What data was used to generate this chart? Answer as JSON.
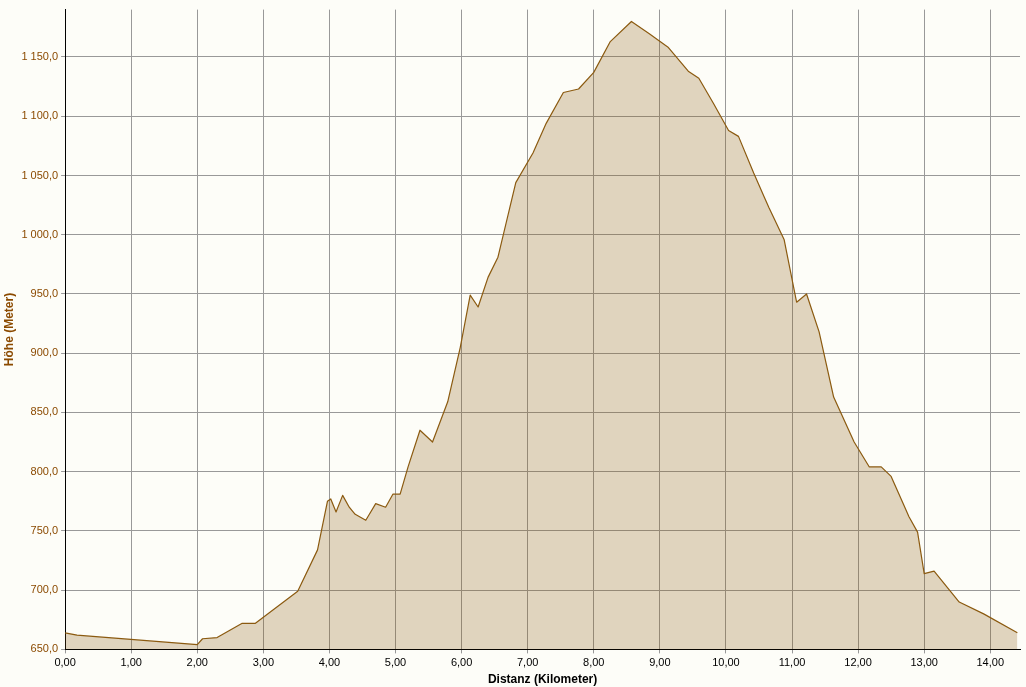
{
  "chart_data": {
    "type": "area",
    "xlabel": "Distanz (Kilometer)",
    "ylabel": "Höhe (Meter)",
    "grid": true,
    "legend": false,
    "marker": "none",
    "line_style": "solid",
    "xlim": [
      0,
      14.45
    ],
    "ylim": [
      650,
      1190
    ],
    "xticks": [
      {
        "value": 0,
        "label": "0,00"
      },
      {
        "value": 1,
        "label": "1,00"
      },
      {
        "value": 2,
        "label": "2,00"
      },
      {
        "value": 3,
        "label": "3,00"
      },
      {
        "value": 4,
        "label": "4,00"
      },
      {
        "value": 5,
        "label": "5,00"
      },
      {
        "value": 6,
        "label": "6,00"
      },
      {
        "value": 7,
        "label": "7,00"
      },
      {
        "value": 8,
        "label": "8,00"
      },
      {
        "value": 9,
        "label": "9,00"
      },
      {
        "value": 10,
        "label": "10,00"
      },
      {
        "value": 11,
        "label": "11,00"
      },
      {
        "value": 12,
        "label": "12,00"
      },
      {
        "value": 13,
        "label": "13,00"
      },
      {
        "value": 14,
        "label": "14,00"
      }
    ],
    "yticks": [
      {
        "value": 650,
        "label": "650,0"
      },
      {
        "value": 700,
        "label": "700,0"
      },
      {
        "value": 750,
        "label": "750,0"
      },
      {
        "value": 800,
        "label": "800,0"
      },
      {
        "value": 850,
        "label": "850,0"
      },
      {
        "value": 900,
        "label": "900,0"
      },
      {
        "value": 950,
        "label": "950,0"
      },
      {
        "value": 1000,
        "label": "1 000,0"
      },
      {
        "value": 1050,
        "label": "1 050,0"
      },
      {
        "value": 1100,
        "label": "1 100,0"
      },
      {
        "value": 1150,
        "label": "1 150,0"
      }
    ],
    "series": [
      {
        "color": "#8b5a10",
        "x": [
          0,
          0.18,
          2.0,
          2.08,
          2.3,
          2.68,
          2.88,
          3.52,
          3.82,
          3.97,
          4.02,
          4.1,
          4.2,
          4.3,
          4.39,
          4.55,
          4.7,
          4.85,
          4.96,
          5.07,
          5.19,
          5.37,
          5.56,
          5.79,
          5.98,
          6.13,
          6.25,
          6.4,
          6.55,
          6.82,
          7.08,
          7.28,
          7.54,
          7.77,
          8.0,
          8.25,
          8.57,
          8.83,
          9.13,
          9.43,
          9.59,
          9.81,
          10.04,
          10.19,
          10.42,
          10.65,
          10.88,
          11.07,
          11.22,
          11.41,
          11.63,
          11.94,
          12.17,
          12.35,
          12.5,
          12.77,
          12.9,
          13.0,
          13.15,
          13.53,
          13.9,
          14.41
        ],
        "values": [
          664,
          662,
          654,
          659,
          660,
          672,
          672,
          699,
          734,
          775,
          777,
          766,
          780,
          770,
          764,
          759,
          773,
          770,
          781,
          781,
          804,
          835,
          825,
          859,
          905,
          949,
          939,
          964,
          981,
          1044,
          1069,
          1094,
          1120,
          1123,
          1137,
          1163,
          1180,
          1170,
          1158,
          1138,
          1132,
          1111,
          1088,
          1083,
          1052,
          1023,
          996,
          943,
          950,
          918,
          863,
          825,
          804,
          804,
          796,
          762,
          749,
          714,
          716,
          690,
          680,
          664
        ]
      }
    ]
  }
}
